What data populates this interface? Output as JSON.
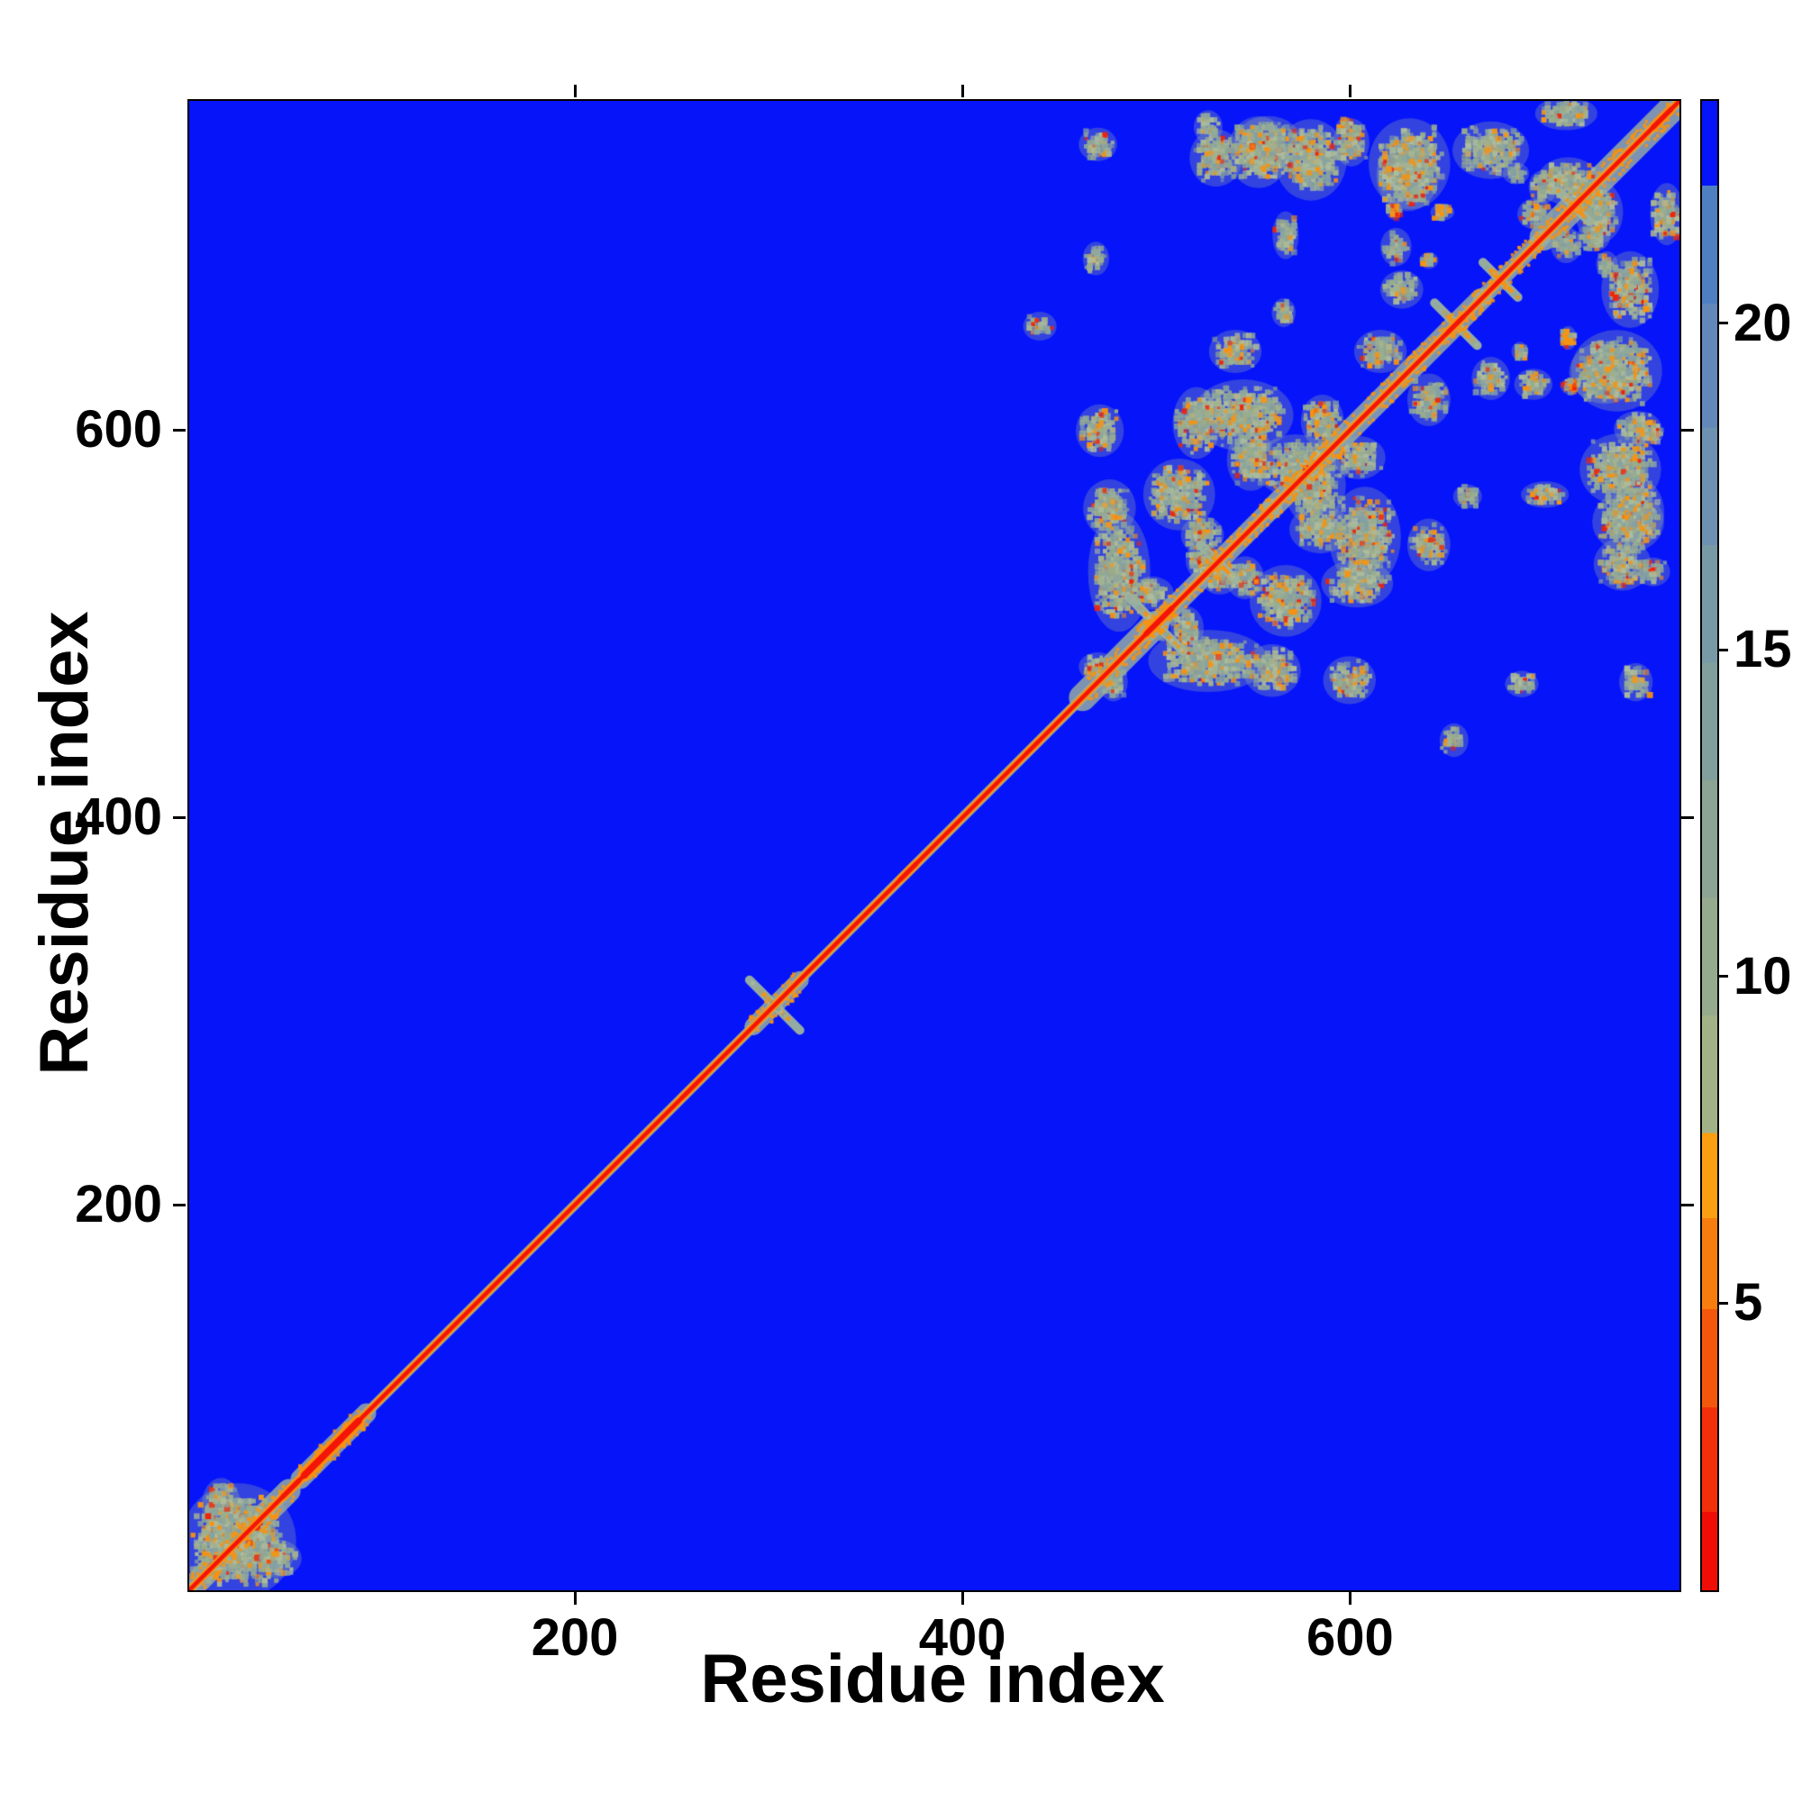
{
  "figure": {
    "background": "#ffffff"
  },
  "chart_data": {
    "type": "heatmap",
    "title": "",
    "xlabel": "Residue index",
    "ylabel": "Residue index",
    "xlim": [
      1,
      770
    ],
    "ylim": [
      1,
      770
    ],
    "xticks": [
      200,
      400,
      600
    ],
    "yticks": [
      200,
      400,
      600
    ],
    "grid": false,
    "legend_position": "right-colorbar",
    "description": "Symmetric residue-residue distance map (~770 residues). Flat blue background = far pairs (top of scale); red/orange main diagonal = self-proximity; teal speckled clusters with orange dots = close contact regions, mirrored across the diagonal.",
    "palette": {
      "background": "#0614f9",
      "diag_halo": "#9cb39f",
      "diag_orange": "#fb8f10",
      "diag_red": "#f41408",
      "speckle": [
        "#8ea79b",
        "#98ad8d",
        "#a4b391",
        "#84a0a4",
        "#aebd9d"
      ],
      "cluster_halo": "rgba(157,180,165,0.30)",
      "dot_orange": "#f8930f",
      "dot_red": "#ee2409",
      "axis_color": "#000000"
    },
    "colorbar": {
      "vmin": 0.6,
      "vmax": 23.4,
      "ticks": [
        5,
        10,
        15,
        20
      ],
      "segments": [
        {
          "v0": 0.6,
          "v1": 1.8,
          "color": "#ef0d06"
        },
        {
          "v0": 1.8,
          "v1": 3.4,
          "color": "#f22f09"
        },
        {
          "v0": 3.4,
          "v1": 4.9,
          "color": "#f4570b"
        },
        {
          "v0": 4.9,
          "v1": 6.3,
          "color": "#f77d0e"
        },
        {
          "v0": 6.3,
          "v1": 7.6,
          "color": "#fa9f11"
        },
        {
          "v0": 7.6,
          "v1": 9.4,
          "color": "#a2b287"
        },
        {
          "v0": 9.4,
          "v1": 11.2,
          "color": "#96ab8d"
        },
        {
          "v0": 11.2,
          "v1": 13.0,
          "color": "#8ba494"
        },
        {
          "v0": 13.0,
          "v1": 14.8,
          "color": "#809f9d"
        },
        {
          "v0": 14.8,
          "v1": 16.6,
          "color": "#7899a6"
        },
        {
          "v0": 16.6,
          "v1": 18.4,
          "color": "#6d91b0"
        },
        {
          "v0": 18.4,
          "v1": 20.3,
          "color": "#6188b9"
        },
        {
          "v0": 20.3,
          "v1": 22.1,
          "color": "#4e7fc0"
        },
        {
          "v0": 22.1,
          "v1": 23.4,
          "color": "#0614f9"
        }
      ]
    },
    "diagonal": {
      "halo_width": 11,
      "orange_width": 8.5,
      "red_width": 4.5,
      "halos": [
        {
          "from": 2,
          "to": 52,
          "w": 26
        },
        {
          "from": 58,
          "to": 92,
          "w": 22
        },
        {
          "from": 292,
          "to": 316,
          "w": 20
        },
        {
          "from": 462,
          "to": 500,
          "w": 30
        },
        {
          "from": 496,
          "to": 560,
          "w": 22
        },
        {
          "from": 560,
          "to": 668,
          "w": 24
        },
        {
          "from": 668,
          "to": 700,
          "w": 18
        },
        {
          "from": 700,
          "to": 770,
          "w": 30
        }
      ],
      "bulges": [
        {
          "from": 49,
          "to": 57,
          "w": 11
        },
        {
          "from": 60,
          "to": 88,
          "w": 15
        },
        {
          "from": 255,
          "to": 266,
          "w": 9
        },
        {
          "from": 368,
          "to": 376,
          "w": 10
        },
        {
          "from": 433,
          "to": 440,
          "w": 9
        },
        {
          "from": 495,
          "to": 508,
          "w": 12
        },
        {
          "from": 651,
          "to": 659,
          "w": 10
        },
        {
          "from": 674,
          "to": 681,
          "w": 9
        },
        {
          "from": 712,
          "to": 720,
          "w": 9
        },
        {
          "from": 757,
          "to": 766,
          "w": 11
        }
      ],
      "crossings": [
        {
          "c": 303,
          "arm": 13
        },
        {
          "c": 500,
          "arm": 14
        },
        {
          "c": 532,
          "arm": 9
        },
        {
          "c": 655,
          "arm": 11
        },
        {
          "c": 678,
          "arm": 9
        },
        {
          "c": 716,
          "arm": 8
        }
      ]
    },
    "contact_clusters": [
      {
        "i": 26,
        "j": 26,
        "w": 48,
        "h": 48,
        "density": 0.5,
        "orange": 0.16,
        "mirror": false
      },
      {
        "i": 45,
        "j": 17,
        "w": 22,
        "h": 16,
        "density": 0.45,
        "orange": 0.15
      },
      {
        "i": 481,
        "j": 527,
        "w": 26,
        "h": 50,
        "density": 0.42,
        "orange": 0.13
      },
      {
        "i": 476,
        "j": 560,
        "w": 22,
        "h": 24,
        "density": 0.38,
        "orange": 0.12
      },
      {
        "i": 471,
        "j": 600,
        "w": 20,
        "h": 22,
        "density": 0.36,
        "orange": 0.12
      },
      {
        "i": 512,
        "j": 567,
        "w": 30,
        "h": 30,
        "density": 0.42,
        "orange": 0.13
      },
      {
        "i": 533,
        "j": 524,
        "w": 16,
        "h": 14,
        "density": 0.45,
        "orange": 0.15
      },
      {
        "i": 545,
        "j": 608,
        "w": 42,
        "h": 30,
        "density": 0.42,
        "orange": 0.13
      },
      {
        "i": 572,
        "j": 582,
        "w": 34,
        "h": 26,
        "density": 0.45,
        "orange": 0.13
      },
      {
        "i": 585,
        "j": 549,
        "w": 26,
        "h": 20,
        "density": 0.42,
        "orange": 0.13
      },
      {
        "i": 605,
        "j": 586,
        "w": 22,
        "h": 18,
        "density": 0.45,
        "orange": 0.14
      },
      {
        "i": 616,
        "j": 641,
        "w": 22,
        "h": 18,
        "density": 0.4,
        "orange": 0.12
      },
      {
        "i": 604,
        "j": 521,
        "w": 30,
        "h": 20,
        "density": 0.4,
        "orange": 0.13
      },
      {
        "i": 641,
        "j": 541,
        "w": 18,
        "h": 22,
        "density": 0.38,
        "orange": 0.12
      },
      {
        "i": 661,
        "j": 566,
        "w": 12,
        "h": 10,
        "density": 0.38,
        "orange": 0.12
      },
      {
        "i": 470,
        "j": 478,
        "w": 16,
        "h": 12,
        "density": 0.4,
        "orange": 0.12
      },
      {
        "i": 498,
        "j": 516,
        "w": 18,
        "h": 14,
        "density": 0.42,
        "orange": 0.14
      },
      {
        "i": 524,
        "j": 546,
        "w": 18,
        "h": 16,
        "density": 0.4,
        "orange": 0.12
      },
      {
        "i": 470,
        "j": 748,
        "w": 16,
        "h": 14,
        "density": 0.3,
        "orange": 0.1
      },
      {
        "i": 531,
        "j": 741,
        "w": 22,
        "h": 24,
        "density": 0.38,
        "orange": 0.12
      },
      {
        "i": 553,
        "j": 744,
        "w": 26,
        "h": 30,
        "density": 0.42,
        "orange": 0.13
      },
      {
        "i": 580,
        "j": 740,
        "w": 30,
        "h": 34,
        "density": 0.45,
        "orange": 0.14
      },
      {
        "i": 598,
        "j": 757,
        "w": 8,
        "h": 8,
        "density": 0.8,
        "orange": 0.45,
        "red": 0.2
      },
      {
        "i": 631,
        "j": 738,
        "w": 34,
        "h": 38,
        "density": 0.45,
        "orange": 0.14
      },
      {
        "i": 648,
        "j": 713,
        "w": 10,
        "h": 7,
        "density": 0.7,
        "orange": 0.5
      },
      {
        "i": 627,
        "j": 673,
        "w": 18,
        "h": 16,
        "density": 0.38,
        "orange": 0.12
      },
      {
        "i": 440,
        "j": 654,
        "w": 14,
        "h": 12,
        "density": 0.28,
        "orange": 0.1
      },
      {
        "i": 713,
        "j": 729,
        "w": 26,
        "h": 20,
        "density": 0.42,
        "orange": 0.13
      },
      {
        "i": 696,
        "j": 712,
        "w": 15,
        "h": 13,
        "density": 0.4,
        "orange": 0.12
      },
      {
        "i": 726,
        "j": 700,
        "w": 14,
        "h": 12,
        "density": 0.4,
        "orange": 0.12
      },
      {
        "i": 712,
        "j": 764,
        "w": 26,
        "h": 14,
        "density": 0.4,
        "orange": 0.12
      },
      {
        "i": 686,
        "j": 733,
        "w": 11,
        "h": 9,
        "density": 0.35,
        "orange": 0.1
      },
      {
        "i": 641,
        "j": 688,
        "w": 8,
        "h": 7,
        "density": 0.5,
        "orange": 0.25
      },
      {
        "i": 732,
        "j": 630,
        "w": 30,
        "h": 26,
        "density": 0.42,
        "orange": 0.13
      },
      {
        "i": 695,
        "j": 624,
        "w": 16,
        "h": 13,
        "density": 0.38,
        "orange": 0.12
      },
      {
        "i": 714,
        "j": 623,
        "w": 8,
        "h": 7,
        "density": 0.8,
        "orange": 0.3,
        "red": 0.35
      },
      {
        "i": 749,
        "j": 601,
        "w": 20,
        "h": 15,
        "density": 0.4,
        "orange": 0.12
      },
      {
        "i": 745,
        "j": 673,
        "w": 24,
        "h": 32,
        "density": 0.4,
        "orange": 0.12
      },
      {
        "i": 701,
        "j": 567,
        "w": 20,
        "h": 11,
        "density": 0.35,
        "orange": 0.1
      },
      {
        "i": 749,
        "j": 558,
        "w": 22,
        "h": 28,
        "density": 0.4,
        "orange": 0.12
      },
      {
        "i": 689,
        "j": 469,
        "w": 14,
        "h": 11,
        "density": 0.32,
        "orange": 0.1
      },
      {
        "i": 757,
        "j": 527,
        "w": 14,
        "h": 12,
        "density": 0.3,
        "orange": 0.1
      }
    ]
  }
}
